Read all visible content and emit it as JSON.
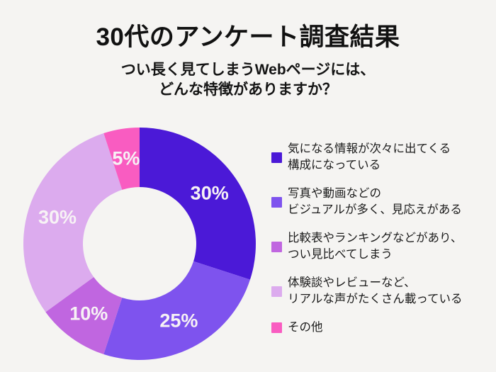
{
  "page": {
    "background_color": "#f5f4f2",
    "title": "30代のアンケート調査結果",
    "subtitle_line1": "つい長く見てしまうWebページには、",
    "subtitle_line2": "どんな特徴がありますか？"
  },
  "chart_data": {
    "type": "pie",
    "variant": "donut",
    "title": "30代のアンケート調査結果",
    "question": "つい長く見てしまうWebページには、どんな特徴がありますか？",
    "start_angle_deg": 0,
    "direction": "clockwise",
    "inner_radius_ratio": 0.488,
    "legend_position": "right",
    "slice_label_color": "#f7f2f5",
    "segments": [
      {
        "label": "気になる情報が次々に出てくる構成になっている",
        "legend_lines": [
          "気になる情報が次々に出てくる",
          "構成になっている"
        ],
        "value": 30,
        "display": "30%",
        "color": "#4b19d7"
      },
      {
        "label": "写真や動画などのビジュアルが多く、見応えがある",
        "legend_lines": [
          "写真や動画などの",
          "ビジュアルが多く、見応えがある"
        ],
        "value": 25,
        "display": "25%",
        "color": "#7e53ee"
      },
      {
        "label": "比較表やランキングなどがあり、つい見比べてしまう",
        "legend_lines": [
          "比較表やランキングなどがあり、",
          "つい見比べてしまう"
        ],
        "value": 10,
        "display": "10%",
        "color": "#c066e0"
      },
      {
        "label": "体験談やレビューなど、リアルな声がたくさん載っている",
        "legend_lines": [
          "体験談やレビューなど、",
          "リアルな声がたくさん載っている"
        ],
        "value": 30,
        "display": "30%",
        "color": "#dcabee"
      },
      {
        "label": "その他",
        "legend_lines": [
          "その他"
        ],
        "value": 5,
        "display": "5%",
        "color": "#f95cc1"
      }
    ]
  }
}
